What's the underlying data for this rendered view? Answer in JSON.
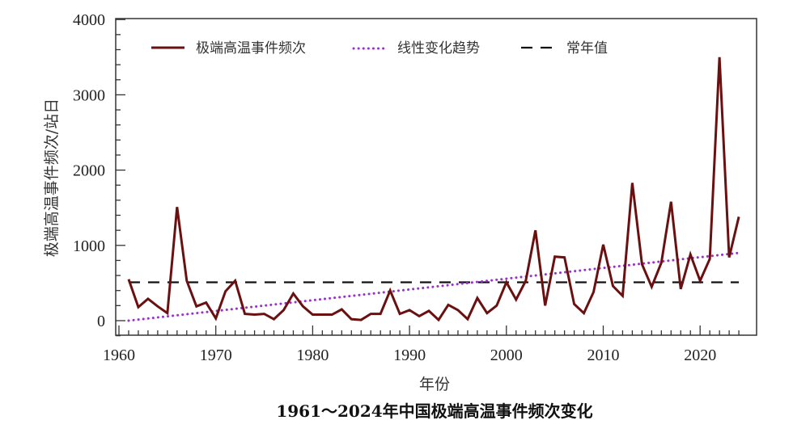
{
  "chart_data": {
    "type": "line",
    "title": "1961～2024年中国极端高温事件频次变化",
    "xlabel": "年份",
    "ylabel": "极端高温事件频次/站日",
    "xlim": [
      1960,
      2025
    ],
    "ylim": [
      -200,
      4000
    ],
    "x_ticks": [
      "1960",
      "1970",
      "1980",
      "1990",
      "2000",
      "2010",
      "2020"
    ],
    "y_ticks": [
      "0",
      "1000",
      "2000",
      "3000",
      "4000"
    ],
    "grid": false,
    "legend_position": "top",
    "colors": {
      "series": "#8b1a1a",
      "trend": "#9932cc",
      "normal": "#111111"
    },
    "x": [
      1961,
      1962,
      1963,
      1964,
      1965,
      1966,
      1967,
      1968,
      1969,
      1970,
      1971,
      1972,
      1973,
      1974,
      1975,
      1976,
      1977,
      1978,
      1979,
      1980,
      1981,
      1982,
      1983,
      1984,
      1985,
      1986,
      1987,
      1988,
      1989,
      1990,
      1991,
      1992,
      1993,
      1994,
      1995,
      1996,
      1997,
      1998,
      1999,
      2000,
      2001,
      2002,
      2003,
      2004,
      2005,
      2006,
      2007,
      2008,
      2009,
      2010,
      2011,
      2012,
      2013,
      2014,
      2015,
      2016,
      2017,
      2018,
      2019,
      2020,
      2021,
      2022,
      2023,
      2024
    ],
    "series": [
      {
        "name": "极端高温事件频次",
        "style": "solid",
        "values": [
          550,
          180,
          290,
          190,
          100,
          1510,
          530,
          190,
          240,
          30,
          390,
          530,
          90,
          80,
          90,
          20,
          140,
          360,
          190,
          80,
          80,
          80,
          150,
          20,
          10,
          90,
          90,
          400,
          90,
          140,
          60,
          130,
          10,
          210,
          140,
          20,
          300,
          100,
          200,
          510,
          280,
          530,
          1200,
          200,
          850,
          840,
          220,
          100,
          380,
          1010,
          460,
          330,
          1830,
          750,
          450,
          770,
          1580,
          420,
          880,
          530,
          820,
          3500,
          840,
          1380
        ]
      },
      {
        "name": "线性变化趋势",
        "style": "dotted",
        "start": [
          1961,
          0
        ],
        "end": [
          2024,
          900
        ]
      },
      {
        "name": "常年值",
        "style": "dashed",
        "value": 510,
        "start_year": 1961,
        "end_year": 2024
      }
    ]
  }
}
